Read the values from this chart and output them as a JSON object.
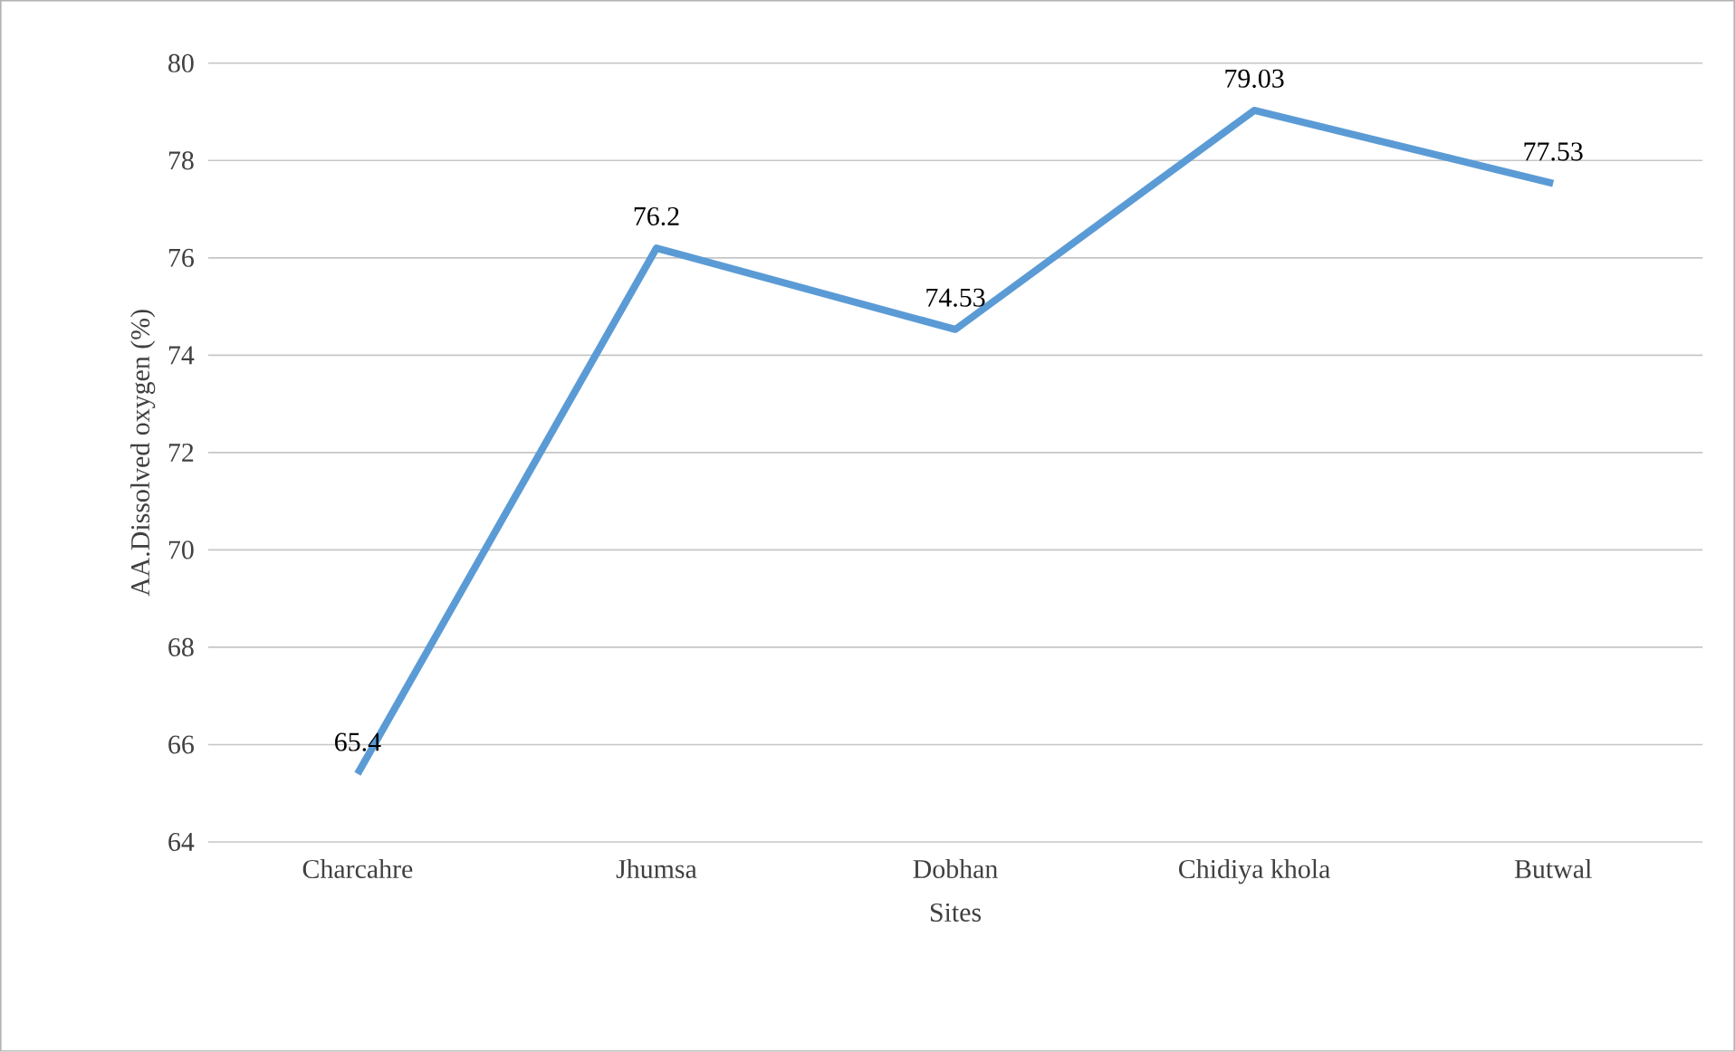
{
  "chart_data": {
    "type": "line",
    "xlabel": "Sites",
    "ylabel": "AA.Dissolved oxygen (%)",
    "categories": [
      "Charcahre",
      "Jhumsa",
      "Dobhan",
      "Chidiya khola",
      "Butwal"
    ],
    "values": [
      65.4,
      76.2,
      74.53,
      79.03,
      77.53
    ],
    "color": "#5b9bd5",
    "ylim": [
      64,
      80
    ],
    "yticks": [
      64,
      66,
      68,
      70,
      72,
      74,
      76,
      78,
      80
    ],
    "grid": "y",
    "data_labels": true
  }
}
